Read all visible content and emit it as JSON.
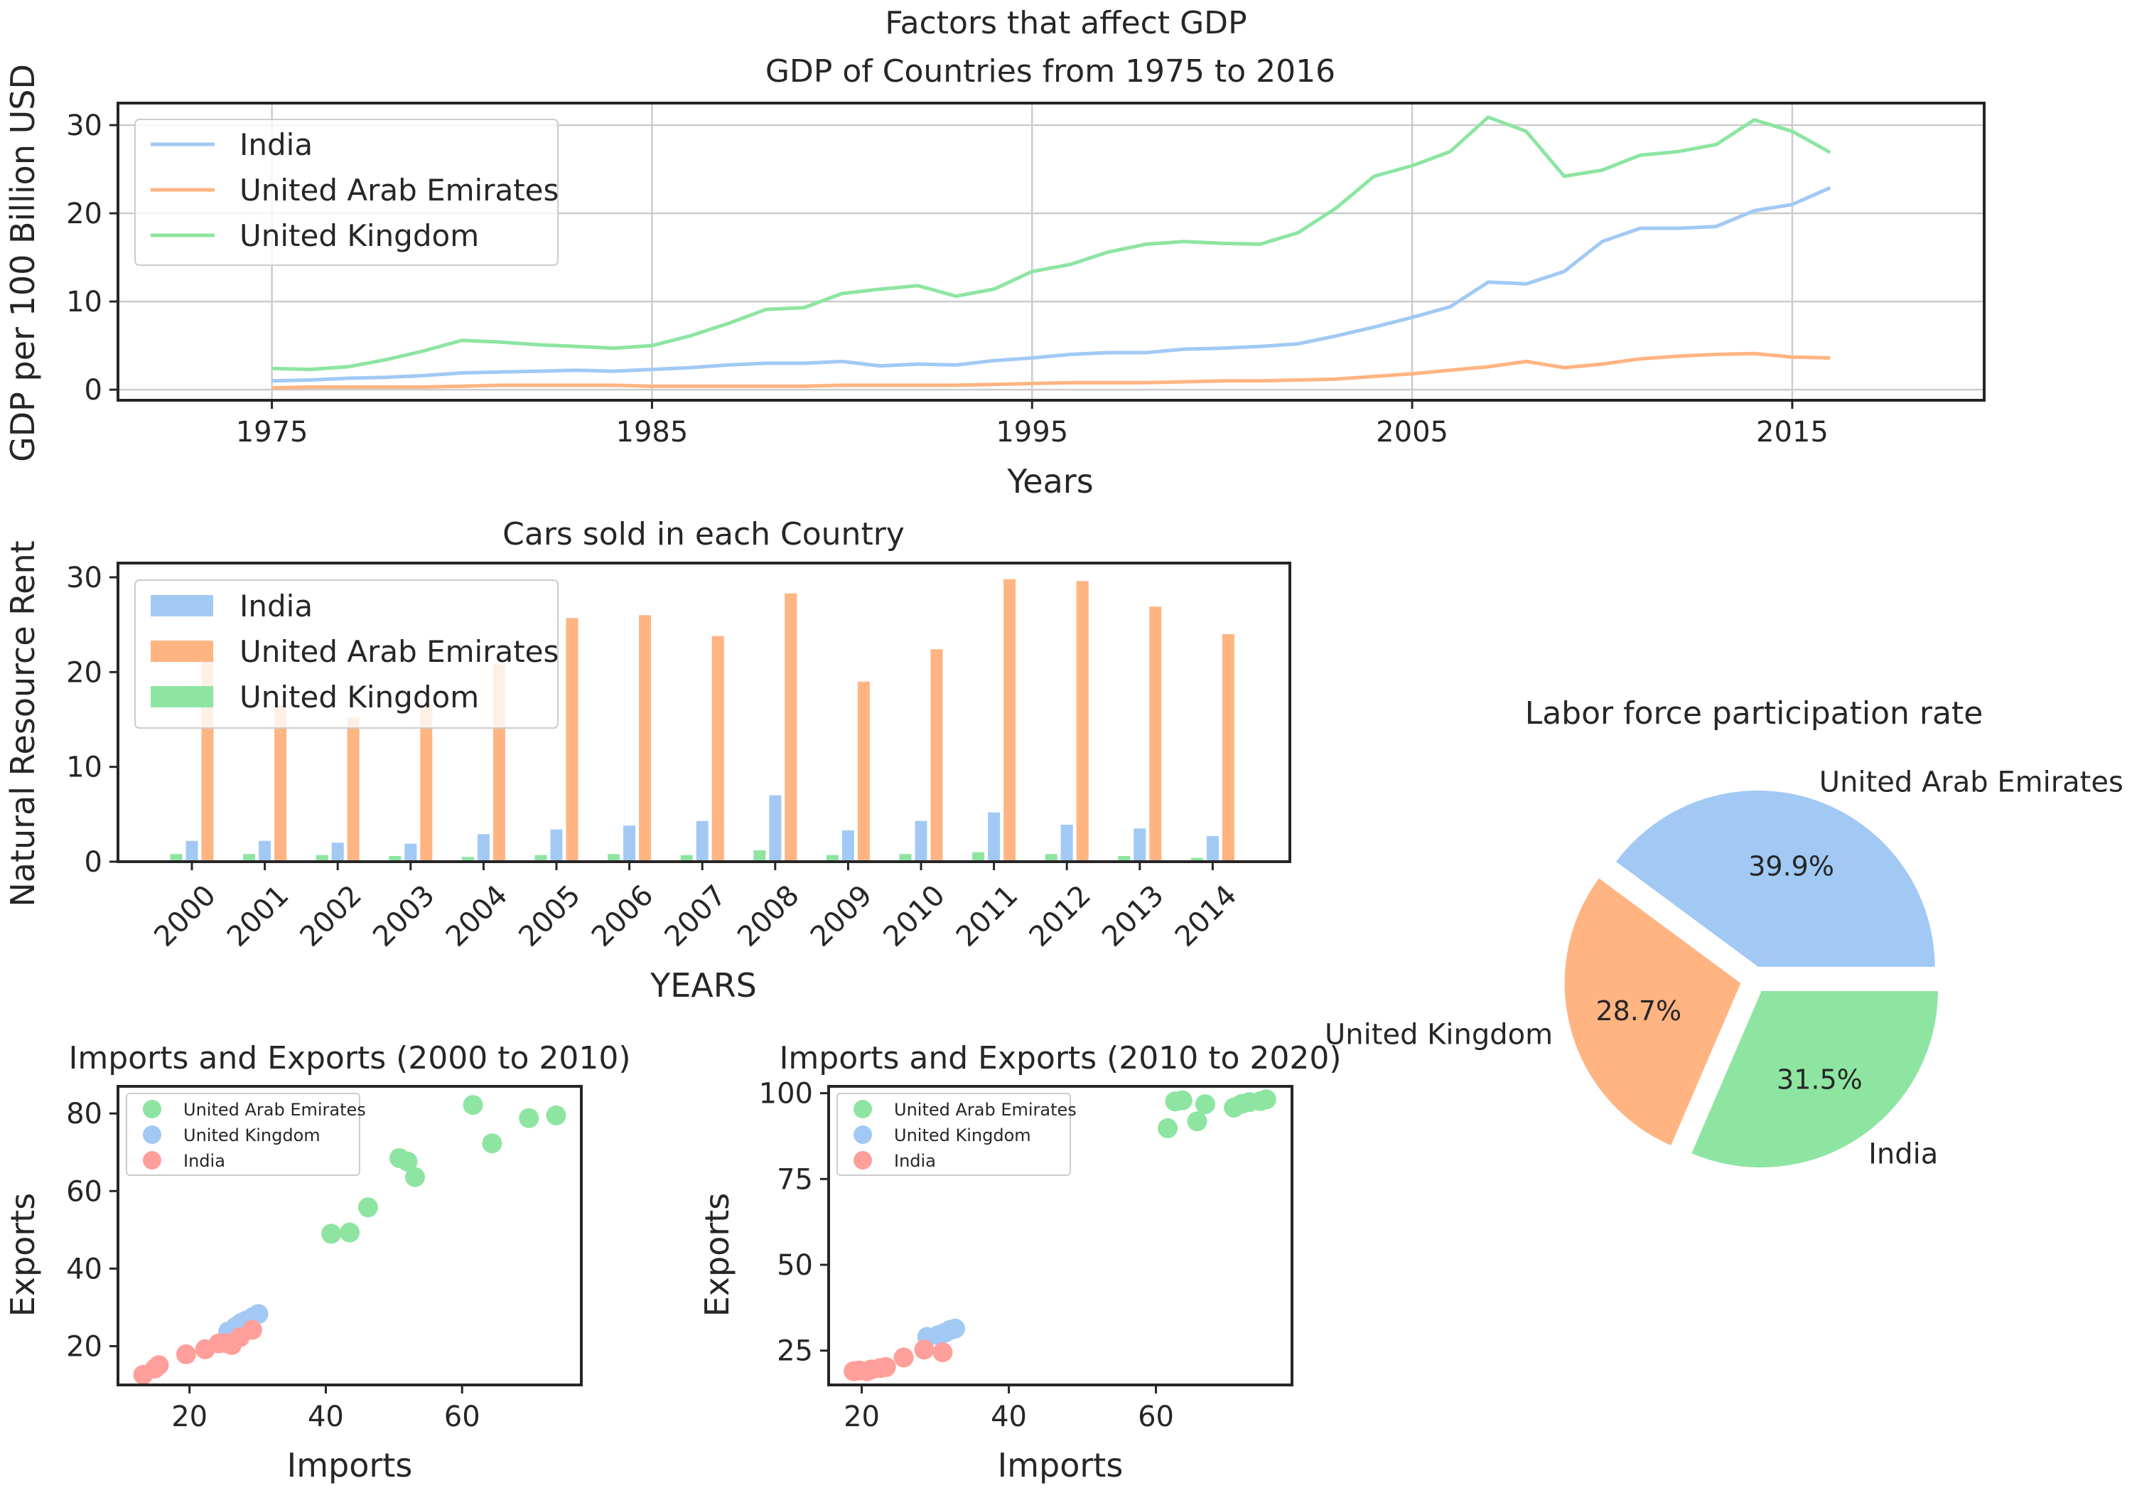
{
  "figure": {
    "suptitle": "Factors that affect GDP"
  },
  "colors": {
    "blue": "#a1c9f4",
    "orange": "#ffb482",
    "green": "#8de5a1",
    "red": "#ff9f9b",
    "axis": "#262626",
    "grid": "#cccccc"
  },
  "chart_data": [
    {
      "id": "gdp",
      "type": "line",
      "title": "GDP of Countries from 1975 to 2016",
      "xlabel": "Years",
      "ylabel": "GDP per 100 Billion USD",
      "xlim": [
        1970.95,
        2020.05
      ],
      "ylim": [
        -1.2,
        32.5
      ],
      "xticks": [
        1975,
        1985,
        1995,
        2005,
        2015
      ],
      "yticks": [
        0,
        10,
        20,
        30
      ],
      "grid": true,
      "legend": "upper left",
      "x": [
        1975,
        1976,
        1977,
        1978,
        1979,
        1980,
        1981,
        1982,
        1983,
        1984,
        1985,
        1986,
        1987,
        1988,
        1989,
        1990,
        1991,
        1992,
        1993,
        1994,
        1995,
        1996,
        1997,
        1998,
        1999,
        2000,
        2001,
        2002,
        2003,
        2004,
        2005,
        2006,
        2007,
        2008,
        2009,
        2010,
        2011,
        2012,
        2013,
        2014,
        2015,
        2016
      ],
      "series": [
        {
          "name": "India",
          "color": "blue",
          "values": [
            1.0,
            1.1,
            1.3,
            1.4,
            1.6,
            1.9,
            2.0,
            2.1,
            2.2,
            2.1,
            2.3,
            2.5,
            2.8,
            3.0,
            3.0,
            3.2,
            2.7,
            2.9,
            2.8,
            3.3,
            3.6,
            4.0,
            4.2,
            4.2,
            4.6,
            4.7,
            4.9,
            5.2,
            6.1,
            7.1,
            8.2,
            9.4,
            12.2,
            12.0,
            13.4,
            16.8,
            18.3,
            18.3,
            18.5,
            20.3,
            21.0,
            22.9
          ]
        },
        {
          "name": "United Arab Emirates",
          "color": "orange",
          "values": [
            0.2,
            0.3,
            0.3,
            0.3,
            0.3,
            0.4,
            0.5,
            0.5,
            0.5,
            0.5,
            0.4,
            0.4,
            0.4,
            0.4,
            0.4,
            0.5,
            0.5,
            0.5,
            0.5,
            0.6,
            0.7,
            0.8,
            0.8,
            0.8,
            0.9,
            1.0,
            1.0,
            1.1,
            1.2,
            1.5,
            1.8,
            2.2,
            2.6,
            3.2,
            2.5,
            2.9,
            3.5,
            3.8,
            4.0,
            4.1,
            3.7,
            3.6
          ]
        },
        {
          "name": "United Kingdom",
          "color": "green",
          "values": [
            2.4,
            2.3,
            2.6,
            3.4,
            4.4,
            5.6,
            5.4,
            5.1,
            4.9,
            4.7,
            5.0,
            6.1,
            7.5,
            9.1,
            9.3,
            10.9,
            11.4,
            11.8,
            10.6,
            11.4,
            13.4,
            14.2,
            15.6,
            16.5,
            16.8,
            16.6,
            16.5,
            17.8,
            20.6,
            24.2,
            25.4,
            27.0,
            30.9,
            29.3,
            24.2,
            24.9,
            26.6,
            27.0,
            27.8,
            30.6,
            29.3,
            26.9
          ]
        }
      ]
    },
    {
      "id": "cars",
      "type": "bar",
      "title": "Cars sold in each Country",
      "xlabel": "YEARS",
      "ylabel": "Natural Resource Rent",
      "ylim": [
        0,
        31.5
      ],
      "yticks": [
        0,
        10,
        20,
        30
      ],
      "legend": "upper left",
      "categories": [
        "2000",
        "2001",
        "2002",
        "2003",
        "2004",
        "2005",
        "2006",
        "2007",
        "2008",
        "2009",
        "2010",
        "2011",
        "2012",
        "2013",
        "2014"
      ],
      "series": [
        {
          "name": "India",
          "color": "blue",
          "values": [
            2.2,
            2.2,
            2.0,
            1.9,
            2.9,
            3.4,
            3.8,
            4.3,
            7.0,
            3.3,
            4.3,
            5.2,
            3.9,
            3.5,
            2.7
          ]
        },
        {
          "name": "United Arab Emirates",
          "color": "orange",
          "values": [
            21.5,
            16.5,
            15.2,
            16.5,
            20.8,
            25.7,
            26.0,
            23.8,
            28.3,
            19.0,
            22.4,
            29.8,
            29.6,
            26.9,
            24.0
          ]
        },
        {
          "name": "United Kingdom",
          "color": "green",
          "values": [
            0.8,
            0.8,
            0.7,
            0.6,
            0.5,
            0.7,
            0.8,
            0.7,
            1.2,
            0.7,
            0.8,
            1.0,
            0.8,
            0.6,
            0.4
          ]
        }
      ]
    },
    {
      "id": "scatter1",
      "type": "scatter",
      "title": "Imports and Exports (2000 to 2010)",
      "xlabel": "Imports",
      "ylabel": "Exports",
      "xlim": [
        9.5,
        77.5
      ],
      "ylim": [
        10,
        87
      ],
      "xticks": [
        20,
        40,
        60
      ],
      "yticks": [
        20,
        40,
        60,
        80
      ],
      "legend": "upper left",
      "series": [
        {
          "name": "United Arab Emirates",
          "color": "green",
          "points": [
            [
              40.8,
              49.0
            ],
            [
              43.5,
              49.3
            ],
            [
              46.2,
              55.8
            ],
            [
              50.8,
              68.5
            ],
            [
              52.0,
              67.6
            ],
            [
              53.1,
              63.6
            ],
            [
              61.6,
              82.2
            ],
            [
              64.4,
              72.3
            ],
            [
              69.8,
              78.8
            ],
            [
              73.8,
              79.5
            ]
          ]
        },
        {
          "name": "United Kingdom",
          "color": "blue",
          "points": [
            [
              25.7,
              23.8
            ],
            [
              26.8,
              25.0
            ],
            [
              27.6,
              26.0
            ],
            [
              28.3,
              26.6
            ],
            [
              29.3,
              27.5
            ],
            [
              30.1,
              28.3
            ]
          ]
        },
        {
          "name": "India",
          "color": "red",
          "points": [
            [
              13.2,
              12.6
            ],
            [
              14.9,
              14.2
            ],
            [
              15.5,
              15.1
            ],
            [
              19.5,
              17.9
            ],
            [
              22.3,
              19.2
            ],
            [
              24.3,
              20.7
            ],
            [
              25.3,
              20.8
            ],
            [
              26.2,
              20.3
            ],
            [
              27.4,
              22.3
            ],
            [
              29.2,
              24.2
            ]
          ]
        }
      ]
    },
    {
      "id": "scatter2",
      "type": "scatter",
      "title": "Imports and Exports (2010 to 2020)",
      "xlabel": "Imports",
      "ylabel": "Exports",
      "xlim": [
        15.5,
        78.5
      ],
      "ylim": [
        15,
        102
      ],
      "xticks": [
        20,
        40,
        60
      ],
      "yticks": [
        25,
        50,
        75,
        100
      ],
      "legend": "upper left",
      "series": [
        {
          "name": "United Arab Emirates",
          "color": "green",
          "points": [
            [
              61.6,
              89.8
            ],
            [
              62.6,
              97.6
            ],
            [
              63.6,
              97.9
            ],
            [
              65.6,
              91.8
            ],
            [
              66.7,
              96.8
            ],
            [
              70.6,
              95.8
            ],
            [
              71.7,
              96.9
            ],
            [
              72.7,
              97.4
            ],
            [
              74.2,
              97.7
            ],
            [
              75.0,
              98.2
            ]
          ]
        },
        {
          "name": "United Kingdom",
          "color": "blue",
          "points": [
            [
              28.9,
              29.0
            ],
            [
              30.4,
              29.5
            ],
            [
              31.3,
              30.2
            ],
            [
              32.0,
              31.0
            ],
            [
              32.7,
              31.4
            ]
          ]
        },
        {
          "name": "India",
          "color": "red",
          "points": [
            [
              18.9,
              19.0
            ],
            [
              19.7,
              19.2
            ],
            [
              20.7,
              19.0
            ],
            [
              21.3,
              19.5
            ],
            [
              22.5,
              19.9
            ],
            [
              23.3,
              20.2
            ],
            [
              25.7,
              23.0
            ],
            [
              28.5,
              25.3
            ],
            [
              31.0,
              24.5
            ]
          ]
        }
      ]
    },
    {
      "id": "pie",
      "type": "pie",
      "title": "Labor force participation rate",
      "slices": [
        {
          "label": "United Arab Emirates",
          "color": "blue",
          "pct": "39.9%",
          "value": 39.9
        },
        {
          "label": "United Kingdom",
          "color": "orange",
          "pct": "28.7%",
          "value": 28.7
        },
        {
          "label": "India",
          "color": "green",
          "pct": "31.5%",
          "value": 31.5
        }
      ]
    }
  ]
}
